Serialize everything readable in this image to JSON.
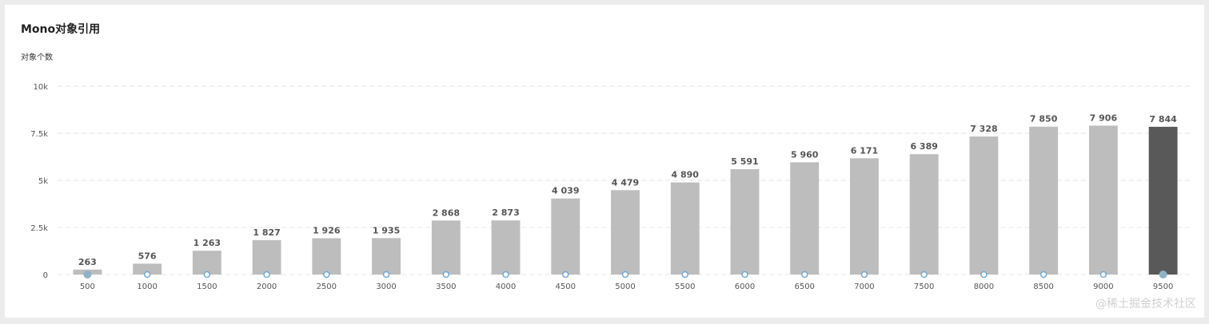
{
  "title": "Mono对象引用",
  "watermark": "@稀土掘金技术社区",
  "colors": {
    "bar": "#bdbdbd",
    "bar_highlight": "#595959",
    "grid": "#e4e4e4",
    "marker": "#6ea8d6",
    "marker_active": "#8fb3c6"
  },
  "chart_data": {
    "type": "bar",
    "title": "Mono对象引用",
    "xlabel": "",
    "ylabel": "对象个数",
    "categories": [
      "500",
      "1000",
      "1500",
      "2000",
      "2500",
      "3000",
      "3500",
      "4000",
      "4500",
      "5000",
      "5500",
      "6000",
      "6500",
      "7000",
      "7500",
      "8000",
      "8500",
      "9000",
      "9500"
    ],
    "values": [
      263,
      576,
      1263,
      1827,
      1926,
      1935,
      2868,
      2873,
      4039,
      4479,
      4890,
      5591,
      5960,
      6171,
      6389,
      7328,
      7850,
      7906,
      7844
    ],
    "value_labels": [
      "263",
      "576",
      "1 263",
      "1 827",
      "1 926",
      "1 935",
      "2 868",
      "2 873",
      "4 039",
      "4 479",
      "4 890",
      "5 591",
      "5 960",
      "6 171",
      "6 389",
      "7 328",
      "7 850",
      "7 906",
      "7 844"
    ],
    "ylim": [
      0,
      10000
    ],
    "yticks": [
      0,
      2500,
      5000,
      7500,
      10000
    ],
    "ytick_labels": [
      "0",
      "2.5k",
      "5k",
      "7.5k",
      "10k"
    ],
    "highlighted_index": 18,
    "grid": true,
    "legend": "none"
  }
}
